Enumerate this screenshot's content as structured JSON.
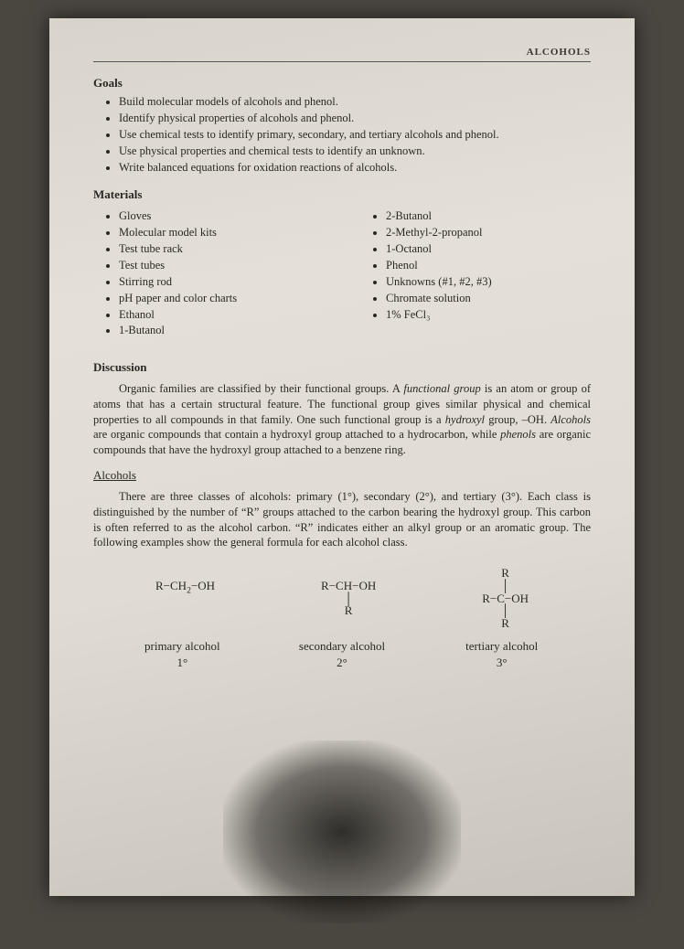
{
  "runhead": "ALCOHOLS",
  "goals": {
    "heading": "Goals",
    "items": [
      "Build molecular models of alcohols and phenol.",
      "Identify physical properties of alcohols and phenol.",
      "Use chemical tests to identify primary, secondary, and tertiary alcohols and phenol.",
      "Use physical properties and chemical tests to identify an unknown.",
      "Write balanced equations for oxidation reactions of alcohols."
    ]
  },
  "materials": {
    "heading": "Materials",
    "left": [
      "Gloves",
      "Molecular model kits",
      "Test tube rack",
      "Test tubes",
      "Stirring rod",
      "pH paper and color charts",
      "Ethanol",
      "1-Butanol"
    ],
    "right": [
      "2-Butanol",
      "2-Methyl-2-propanol",
      "1-Octanol",
      "Phenol",
      "Unknowns (#1, #2, #3)",
      "Chromate solution",
      "1% FeCl₃"
    ]
  },
  "discussion": {
    "heading": "Discussion",
    "para1_html": "Organic families are classified by their functional groups. A <i>functional group</i> is an atom or group of atoms that has a certain structural feature. The functional group gives similar physical and chemical properties to all compounds in that family. One such functional group is a <i>hydroxyl</i> group, –OH. <i>Alcohols</i> are organic compounds that contain a hydroxyl group attached to a hydrocarbon, while <i>phenols</i> are organic compounds that have the hydroxyl group attached to a benzene ring."
  },
  "alcohols": {
    "subhead": "Alcohols",
    "para_html": "There are three classes of alcohols:  primary (1°), secondary (2°), and tertiary (3°). Each class is distinguished by the number of “R” groups attached to the carbon bearing the hydroxyl group. This carbon is often referred to as the alcohol carbon. “R” indicates either an alkyl group or an aromatic group. The following examples show the general formula for each alcohol class."
  },
  "formulas": {
    "primary": {
      "name": "primary alcohol",
      "degree": "1°"
    },
    "secondary": {
      "name": "secondary alcohol",
      "degree": "2°"
    },
    "tertiary": {
      "name": "tertiary alcohol",
      "degree": "3°"
    }
  }
}
